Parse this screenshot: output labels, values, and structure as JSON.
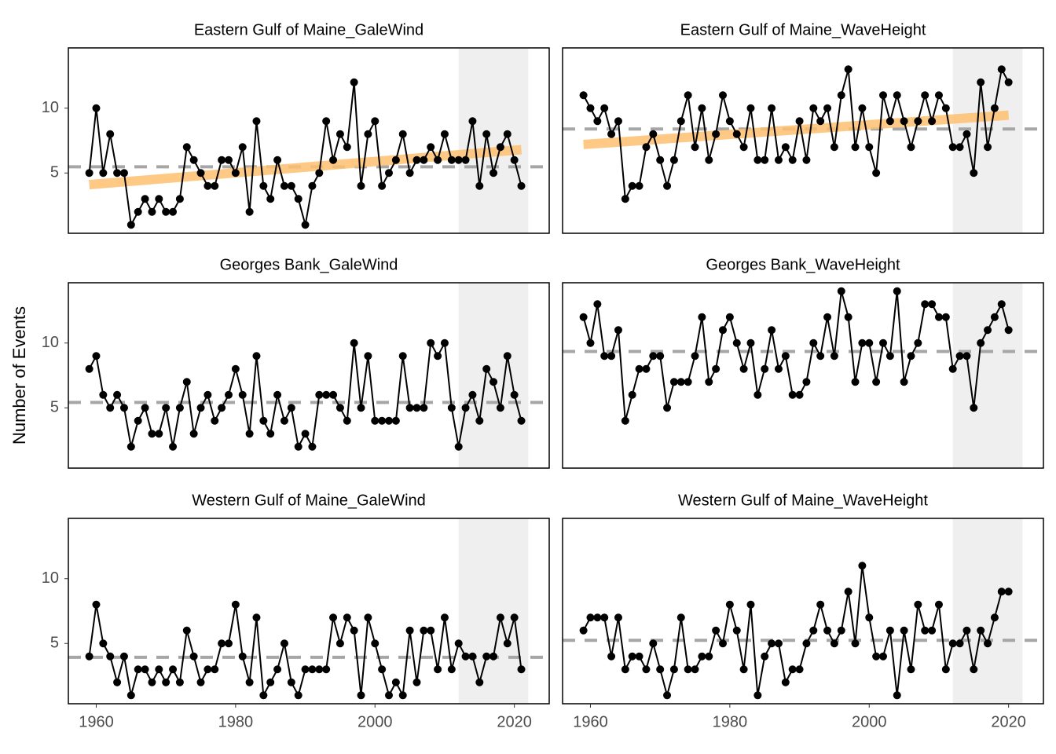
{
  "chart_data": [
    {
      "type": "line",
      "title": "Eastern Gulf of Maine_GaleWind",
      "color": "#000000",
      "x": [
        1959,
        1960,
        1961,
        1962,
        1963,
        1964,
        1965,
        1966,
        1967,
        1968,
        1969,
        1970,
        1971,
        1972,
        1973,
        1974,
        1975,
        1976,
        1977,
        1978,
        1979,
        1980,
        1981,
        1982,
        1983,
        1984,
        1985,
        1986,
        1987,
        1988,
        1989,
        1990,
        1991,
        1992,
        1993,
        1994,
        1995,
        1996,
        1997,
        1998,
        1999,
        2000,
        2001,
        2002,
        2003,
        2004,
        2005,
        2006,
        2007,
        2008,
        2009,
        2010,
        2011,
        2012,
        2013,
        2014,
        2015,
        2016,
        2017,
        2018,
        2019,
        2020,
        2021
      ],
      "values": [
        5,
        10,
        5,
        8,
        5,
        5,
        1,
        2,
        3,
        2,
        3,
        2,
        2,
        3,
        7,
        6,
        5,
        4,
        4,
        6,
        6,
        5,
        7,
        2,
        9,
        4,
        3,
        6,
        4,
        4,
        3,
        1,
        4,
        5,
        9,
        6,
        8,
        7,
        12,
        4,
        8,
        9,
        4,
        5,
        6,
        8,
        5,
        6,
        6,
        7,
        6,
        8,
        6,
        6,
        6,
        9,
        4,
        8,
        5,
        7,
        8,
        6,
        4
      ],
      "mean": 5.48,
      "mean_color": "#a6a6a6",
      "trend": {
        "x": [
          1959,
          2021
        ],
        "y": [
          4.1,
          6.8
        ],
        "color": "#fdbf6f"
      },
      "shade": [
        2012,
        2022
      ],
      "shade_color": "#efefef",
      "xlim": [
        1956,
        2025
      ],
      "ylim": [
        0.35,
        14.65
      ],
      "yticks": [
        5,
        10
      ],
      "grid": false
    },
    {
      "type": "line",
      "title": "Eastern Gulf of Maine_WaveHeight",
      "color": "#000000",
      "x": [
        1959,
        1960,
        1961,
        1962,
        1963,
        1964,
        1965,
        1966,
        1967,
        1968,
        1969,
        1970,
        1971,
        1972,
        1973,
        1974,
        1975,
        1976,
        1977,
        1978,
        1979,
        1980,
        1981,
        1982,
        1983,
        1984,
        1985,
        1986,
        1987,
        1988,
        1989,
        1990,
        1991,
        1992,
        1993,
        1994,
        1995,
        1996,
        1997,
        1998,
        1999,
        2000,
        2001,
        2002,
        2003,
        2004,
        2005,
        2006,
        2007,
        2008,
        2009,
        2010,
        2011,
        2012,
        2013,
        2014,
        2015,
        2016,
        2017,
        2018,
        2019,
        2020
      ],
      "values": [
        11,
        10,
        9,
        10,
        8,
        9,
        3,
        4,
        4,
        7,
        8,
        6,
        4,
        6,
        9,
        11,
        7,
        10,
        6,
        8,
        11,
        9,
        8,
        7,
        10,
        6,
        6,
        10,
        6,
        7,
        6,
        9,
        6,
        10,
        9,
        10,
        7,
        11,
        13,
        7,
        10,
        7,
        5,
        11,
        9,
        11,
        9,
        7,
        9,
        11,
        9,
        11,
        10,
        7,
        7,
        8,
        5,
        12,
        7,
        10,
        13,
        12
      ],
      "mean": 8.39,
      "mean_color": "#a6a6a6",
      "trend": {
        "x": [
          1959,
          2020
        ],
        "y": [
          7.2,
          9.46
        ],
        "color": "#fdbf6f"
      },
      "shade": [
        2012,
        2022
      ],
      "shade_color": "#efefef",
      "xlim": [
        1956,
        2025
      ],
      "ylim": [
        0.35,
        14.65
      ],
      "grid": false
    },
    {
      "type": "line",
      "title": "Georges Bank_GaleWind",
      "color": "#000000",
      "ylabel": "Number of Events",
      "x": [
        1959,
        1960,
        1961,
        1962,
        1963,
        1964,
        1965,
        1966,
        1967,
        1968,
        1969,
        1970,
        1971,
        1972,
        1973,
        1974,
        1975,
        1976,
        1977,
        1978,
        1979,
        1980,
        1981,
        1982,
        1983,
        1984,
        1985,
        1986,
        1987,
        1988,
        1989,
        1990,
        1991,
        1992,
        1993,
        1994,
        1995,
        1996,
        1997,
        1998,
        1999,
        2000,
        2001,
        2002,
        2003,
        2004,
        2005,
        2006,
        2007,
        2008,
        2009,
        2010,
        2011,
        2012,
        2013,
        2014,
        2015,
        2016,
        2017,
        2018,
        2019,
        2020,
        2021
      ],
      "values": [
        8,
        9,
        6,
        5,
        6,
        5,
        2,
        4,
        5,
        3,
        3,
        5,
        2,
        5,
        7,
        3,
        5,
        6,
        4,
        5,
        6,
        8,
        6,
        3,
        9,
        4,
        3,
        6,
        4,
        5,
        2,
        3,
        2,
        6,
        6,
        6,
        5,
        4,
        10,
        5,
        9,
        4,
        4,
        4,
        4,
        9,
        5,
        5,
        5,
        10,
        9,
        10,
        5,
        2,
        5,
        6,
        4,
        8,
        7,
        5,
        9,
        6,
        4
      ],
      "mean": 5.42,
      "mean_color": "#a6a6a6",
      "shade": [
        2012,
        2022
      ],
      "shade_color": "#efefef",
      "xlim": [
        1956,
        2025
      ],
      "ylim": [
        0.35,
        14.65
      ],
      "yticks": [
        5,
        10
      ],
      "grid": false
    },
    {
      "type": "line",
      "title": "Georges Bank_WaveHeight",
      "color": "#000000",
      "x": [
        1959,
        1960,
        1961,
        1962,
        1963,
        1964,
        1965,
        1966,
        1967,
        1968,
        1969,
        1970,
        1971,
        1972,
        1973,
        1974,
        1975,
        1976,
        1977,
        1978,
        1979,
        1980,
        1981,
        1982,
        1983,
        1984,
        1985,
        1986,
        1987,
        1988,
        1989,
        1990,
        1991,
        1992,
        1993,
        1994,
        1995,
        1996,
        1997,
        1998,
        1999,
        2000,
        2001,
        2002,
        2003,
        2004,
        2005,
        2006,
        2007,
        2008,
        2009,
        2010,
        2011,
        2012,
        2013,
        2014,
        2015,
        2016,
        2017,
        2018,
        2019,
        2020
      ],
      "values": [
        12,
        10,
        13,
        9,
        9,
        11,
        4,
        6,
        8,
        8,
        9,
        9,
        5,
        7,
        7,
        7,
        9,
        12,
        7,
        8,
        11,
        12,
        10,
        8,
        10,
        6,
        8,
        11,
        8,
        9,
        6,
        6,
        7,
        10,
        9,
        12,
        9,
        14,
        12,
        7,
        10,
        10,
        7,
        10,
        9,
        14,
        7,
        9,
        10,
        13,
        13,
        12,
        12,
        8,
        9,
        9,
        5,
        10,
        11,
        12,
        13,
        11
      ],
      "mean": 9.35,
      "mean_color": "#a6a6a6",
      "shade": [
        2012,
        2022
      ],
      "shade_color": "#efefef",
      "xlim": [
        1956,
        2025
      ],
      "ylim": [
        0.35,
        14.65
      ],
      "grid": false
    },
    {
      "type": "line",
      "title": "Western Gulf of Maine_GaleWind",
      "color": "#000000",
      "x": [
        1959,
        1960,
        1961,
        1962,
        1963,
        1964,
        1965,
        1966,
        1967,
        1968,
        1969,
        1970,
        1971,
        1972,
        1973,
        1974,
        1975,
        1976,
        1977,
        1978,
        1979,
        1980,
        1981,
        1982,
        1983,
        1984,
        1985,
        1986,
        1987,
        1988,
        1989,
        1990,
        1991,
        1992,
        1993,
        1994,
        1995,
        1996,
        1997,
        1998,
        1999,
        2000,
        2001,
        2002,
        2003,
        2004,
        2005,
        2006,
        2007,
        2008,
        2009,
        2010,
        2011,
        2012,
        2013,
        2014,
        2015,
        2016,
        2017,
        2018,
        2019,
        2020,
        2021
      ],
      "values": [
        4,
        8,
        5,
        4,
        2,
        4,
        1,
        3,
        3,
        2,
        3,
        2,
        3,
        2,
        6,
        4,
        2,
        3,
        3,
        5,
        5,
        8,
        4,
        2,
        7,
        1,
        2,
        3,
        5,
        2,
        1,
        3,
        3,
        3,
        3,
        7,
        5,
        7,
        6,
        1,
        7,
        5,
        3,
        1,
        2,
        1,
        6,
        2,
        6,
        6,
        3,
        7,
        3,
        5,
        4,
        4,
        2,
        4,
        4,
        7,
        5,
        7,
        3
      ],
      "mean": 3.93,
      "mean_color": "#a6a6a6",
      "shade": [
        2012,
        2022
      ],
      "shade_color": "#efefef",
      "xlim": [
        1956,
        2025
      ],
      "ylim": [
        0.35,
        14.65
      ],
      "xticks": [
        1960,
        1980,
        2000,
        2020
      ],
      "yticks": [
        5,
        10
      ],
      "grid": false
    },
    {
      "type": "line",
      "title": "Western Gulf of Maine_WaveHeight",
      "color": "#000000",
      "x": [
        1959,
        1960,
        1961,
        1962,
        1963,
        1964,
        1965,
        1966,
        1967,
        1968,
        1969,
        1970,
        1971,
        1972,
        1973,
        1974,
        1975,
        1976,
        1977,
        1978,
        1979,
        1980,
        1981,
        1982,
        1983,
        1984,
        1985,
        1986,
        1987,
        1988,
        1989,
        1990,
        1991,
        1992,
        1993,
        1994,
        1995,
        1996,
        1997,
        1998,
        1999,
        2000,
        2001,
        2002,
        2003,
        2004,
        2005,
        2006,
        2007,
        2008,
        2009,
        2010,
        2011,
        2012,
        2013,
        2014,
        2015,
        2016,
        2017,
        2018,
        2019,
        2020
      ],
      "values": [
        6,
        7,
        7,
        7,
        4,
        7,
        3,
        4,
        4,
        3,
        5,
        3,
        1,
        3,
        7,
        3,
        3,
        4,
        4,
        6,
        5,
        8,
        6,
        3,
        8,
        1,
        4,
        5,
        5,
        2,
        3,
        3,
        5,
        6,
        8,
        6,
        5,
        6,
        9,
        5,
        11,
        7,
        4,
        4,
        6,
        1,
        6,
        3,
        8,
        6,
        6,
        8,
        3,
        5,
        5,
        6,
        3,
        6,
        5,
        7,
        9,
        9
      ],
      "mean": 5.24,
      "mean_color": "#a6a6a6",
      "shade": [
        2012,
        2022
      ],
      "shade_color": "#efefef",
      "xlim": [
        1956,
        2025
      ],
      "ylim": [
        0.35,
        14.65
      ],
      "xticks": [
        1960,
        1980,
        2000,
        2020
      ],
      "grid": false
    }
  ]
}
